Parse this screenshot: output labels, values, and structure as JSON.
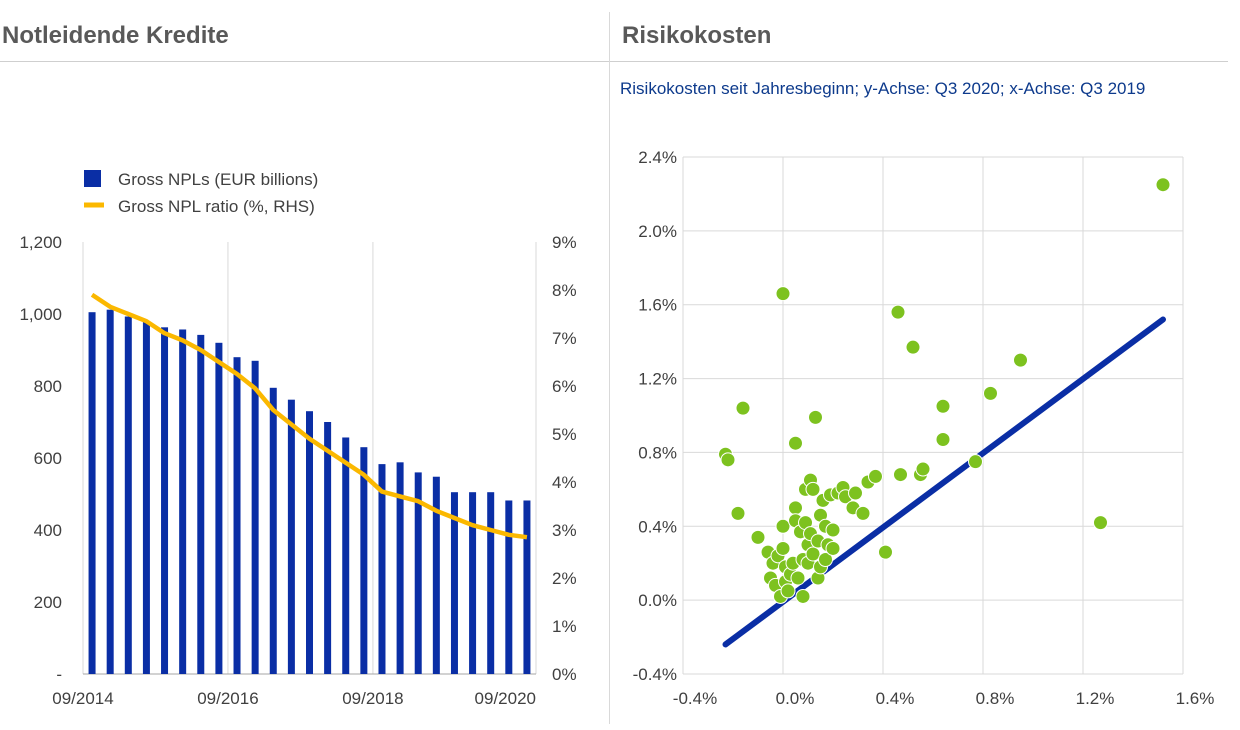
{
  "panels": {
    "left_title": "Notleidende Kredite",
    "right_title": "Risikokosten",
    "right_subtitle": "Risikokosten seit Jahresbeginn; y-Achse: Q3 2020; x-Achse: Q3 2019"
  },
  "colors": {
    "bar": "#0a2ea5",
    "ratio_line": "#fbb800",
    "scatter": "#7dc21f",
    "diagonal": "#0a2ea5",
    "grid": "#d9d9d9"
  },
  "chart_data": [
    {
      "type": "bar",
      "title": "",
      "categories": [
        "09/2014",
        "12/2014",
        "03/2015",
        "06/2015",
        "09/2015",
        "12/2015",
        "03/2016",
        "06/2016",
        "09/2016",
        "12/2016",
        "03/2017",
        "06/2017",
        "09/2017",
        "12/2017",
        "03/2018",
        "06/2018",
        "09/2018",
        "12/2018",
        "03/2019",
        "06/2019",
        "09/2019",
        "12/2019",
        "03/2020",
        "06/2020",
        "09/2020"
      ],
      "x_tick_labels": [
        "09/2014",
        "09/2016",
        "09/2018",
        "09/2020"
      ],
      "series": [
        {
          "name": "Gross NPLs (EUR billions)",
          "type": "bar",
          "axis": "left",
          "values": [
            1005,
            1012,
            993,
            980,
            963,
            957,
            942,
            920,
            880,
            870,
            795,
            762,
            730,
            700,
            657,
            630,
            583,
            588,
            560,
            548,
            505,
            505,
            505,
            482,
            482
          ]
        },
        {
          "name": "Gross NPL ratio (%, RHS)",
          "type": "line",
          "axis": "right",
          "values": [
            7.9,
            7.65,
            7.5,
            7.35,
            7.1,
            6.95,
            6.75,
            6.5,
            6.25,
            5.95,
            5.5,
            5.2,
            4.9,
            4.65,
            4.4,
            4.15,
            3.8,
            3.7,
            3.6,
            3.4,
            3.25,
            3.1,
            3.0,
            2.9,
            2.85
          ]
        }
      ],
      "ylim_left": [
        0,
        1200
      ],
      "y_ticks_left": [
        "-",
        "200",
        "400",
        "600",
        "800",
        "1,000",
        "1,200"
      ],
      "ylim_right": [
        0,
        9
      ],
      "y_ticks_right": [
        "0%",
        "1%",
        "2%",
        "3%",
        "4%",
        "5%",
        "6%",
        "7%",
        "8%",
        "9%"
      ],
      "legend": "top-left",
      "grid": "vertical"
    },
    {
      "type": "scatter",
      "title": "Risikokosten seit Jahresbeginn; y-Achse: Q3 2020; x-Achse: Q3 2019",
      "xlabel": "",
      "ylabel": "",
      "xlim": [
        -0.4,
        1.6
      ],
      "ylim": [
        -0.4,
        2.4
      ],
      "x_ticks": [
        "-0.4%",
        "0.0%",
        "0.4%",
        "0.8%",
        "1.2%",
        "1.6%"
      ],
      "y_ticks": [
        "-0.4%",
        "0.0%",
        "0.4%",
        "0.8%",
        "1.2%",
        "1.6%",
        "2.0%",
        "2.4%"
      ],
      "grid": "both",
      "line": {
        "x": [
          -0.23,
          1.52
        ],
        "y": [
          -0.24,
          1.52
        ]
      },
      "points": [
        {
          "x": -0.23,
          "y": 0.79
        },
        {
          "x": -0.22,
          "y": 0.76
        },
        {
          "x": -0.18,
          "y": 0.47
        },
        {
          "x": -0.16,
          "y": 1.04
        },
        {
          "x": -0.1,
          "y": 0.34
        },
        {
          "x": -0.06,
          "y": 0.26
        },
        {
          "x": -0.05,
          "y": 0.12
        },
        {
          "x": -0.04,
          "y": 0.2
        },
        {
          "x": -0.03,
          "y": 0.08
        },
        {
          "x": -0.02,
          "y": 0.24
        },
        {
          "x": -0.01,
          "y": 0.02
        },
        {
          "x": 0.0,
          "y": 1.66
        },
        {
          "x": 0.0,
          "y": 0.4
        },
        {
          "x": 0.01,
          "y": 0.1
        },
        {
          "x": 0.01,
          "y": 0.18
        },
        {
          "x": 0.0,
          "y": 0.28
        },
        {
          "x": 0.02,
          "y": 0.05
        },
        {
          "x": 0.03,
          "y": 0.14
        },
        {
          "x": 0.04,
          "y": 0.2
        },
        {
          "x": 0.05,
          "y": 0.5
        },
        {
          "x": 0.05,
          "y": 0.43
        },
        {
          "x": 0.05,
          "y": 0.85
        },
        {
          "x": 0.06,
          "y": 0.12
        },
        {
          "x": 0.07,
          "y": 0.37
        },
        {
          "x": 0.08,
          "y": 0.02
        },
        {
          "x": 0.08,
          "y": 0.22
        },
        {
          "x": 0.09,
          "y": 0.6
        },
        {
          "x": 0.09,
          "y": 0.42
        },
        {
          "x": 0.1,
          "y": 0.3
        },
        {
          "x": 0.1,
          "y": 0.2
        },
        {
          "x": 0.11,
          "y": 0.65
        },
        {
          "x": 0.11,
          "y": 0.36
        },
        {
          "x": 0.12,
          "y": 0.25
        },
        {
          "x": 0.12,
          "y": 0.6
        },
        {
          "x": 0.13,
          "y": 0.99
        },
        {
          "x": 0.14,
          "y": 0.12
        },
        {
          "x": 0.14,
          "y": 0.32
        },
        {
          "x": 0.15,
          "y": 0.46
        },
        {
          "x": 0.15,
          "y": 0.18
        },
        {
          "x": 0.16,
          "y": 0.54
        },
        {
          "x": 0.17,
          "y": 0.4
        },
        {
          "x": 0.17,
          "y": 0.22
        },
        {
          "x": 0.18,
          "y": 0.3
        },
        {
          "x": 0.19,
          "y": 0.57
        },
        {
          "x": 0.2,
          "y": 0.38
        },
        {
          "x": 0.2,
          "y": 0.28
        },
        {
          "x": 0.22,
          "y": 0.58
        },
        {
          "x": 0.24,
          "y": 0.61
        },
        {
          "x": 0.25,
          "y": 0.56
        },
        {
          "x": 0.28,
          "y": 0.5
        },
        {
          "x": 0.29,
          "y": 0.58
        },
        {
          "x": 0.32,
          "y": 0.47
        },
        {
          "x": 0.34,
          "y": 0.64
        },
        {
          "x": 0.37,
          "y": 0.67
        },
        {
          "x": 0.41,
          "y": 0.26
        },
        {
          "x": 0.46,
          "y": 1.56
        },
        {
          "x": 0.47,
          "y": 0.68
        },
        {
          "x": 0.52,
          "y": 1.37
        },
        {
          "x": 0.55,
          "y": 0.68
        },
        {
          "x": 0.56,
          "y": 0.71
        },
        {
          "x": 0.64,
          "y": 1.05
        },
        {
          "x": 0.64,
          "y": 0.87
        },
        {
          "x": 0.77,
          "y": 0.75
        },
        {
          "x": 0.83,
          "y": 1.12
        },
        {
          "x": 0.95,
          "y": 1.3
        },
        {
          "x": 1.27,
          "y": 0.42
        },
        {
          "x": 1.52,
          "y": 2.25
        }
      ]
    }
  ]
}
